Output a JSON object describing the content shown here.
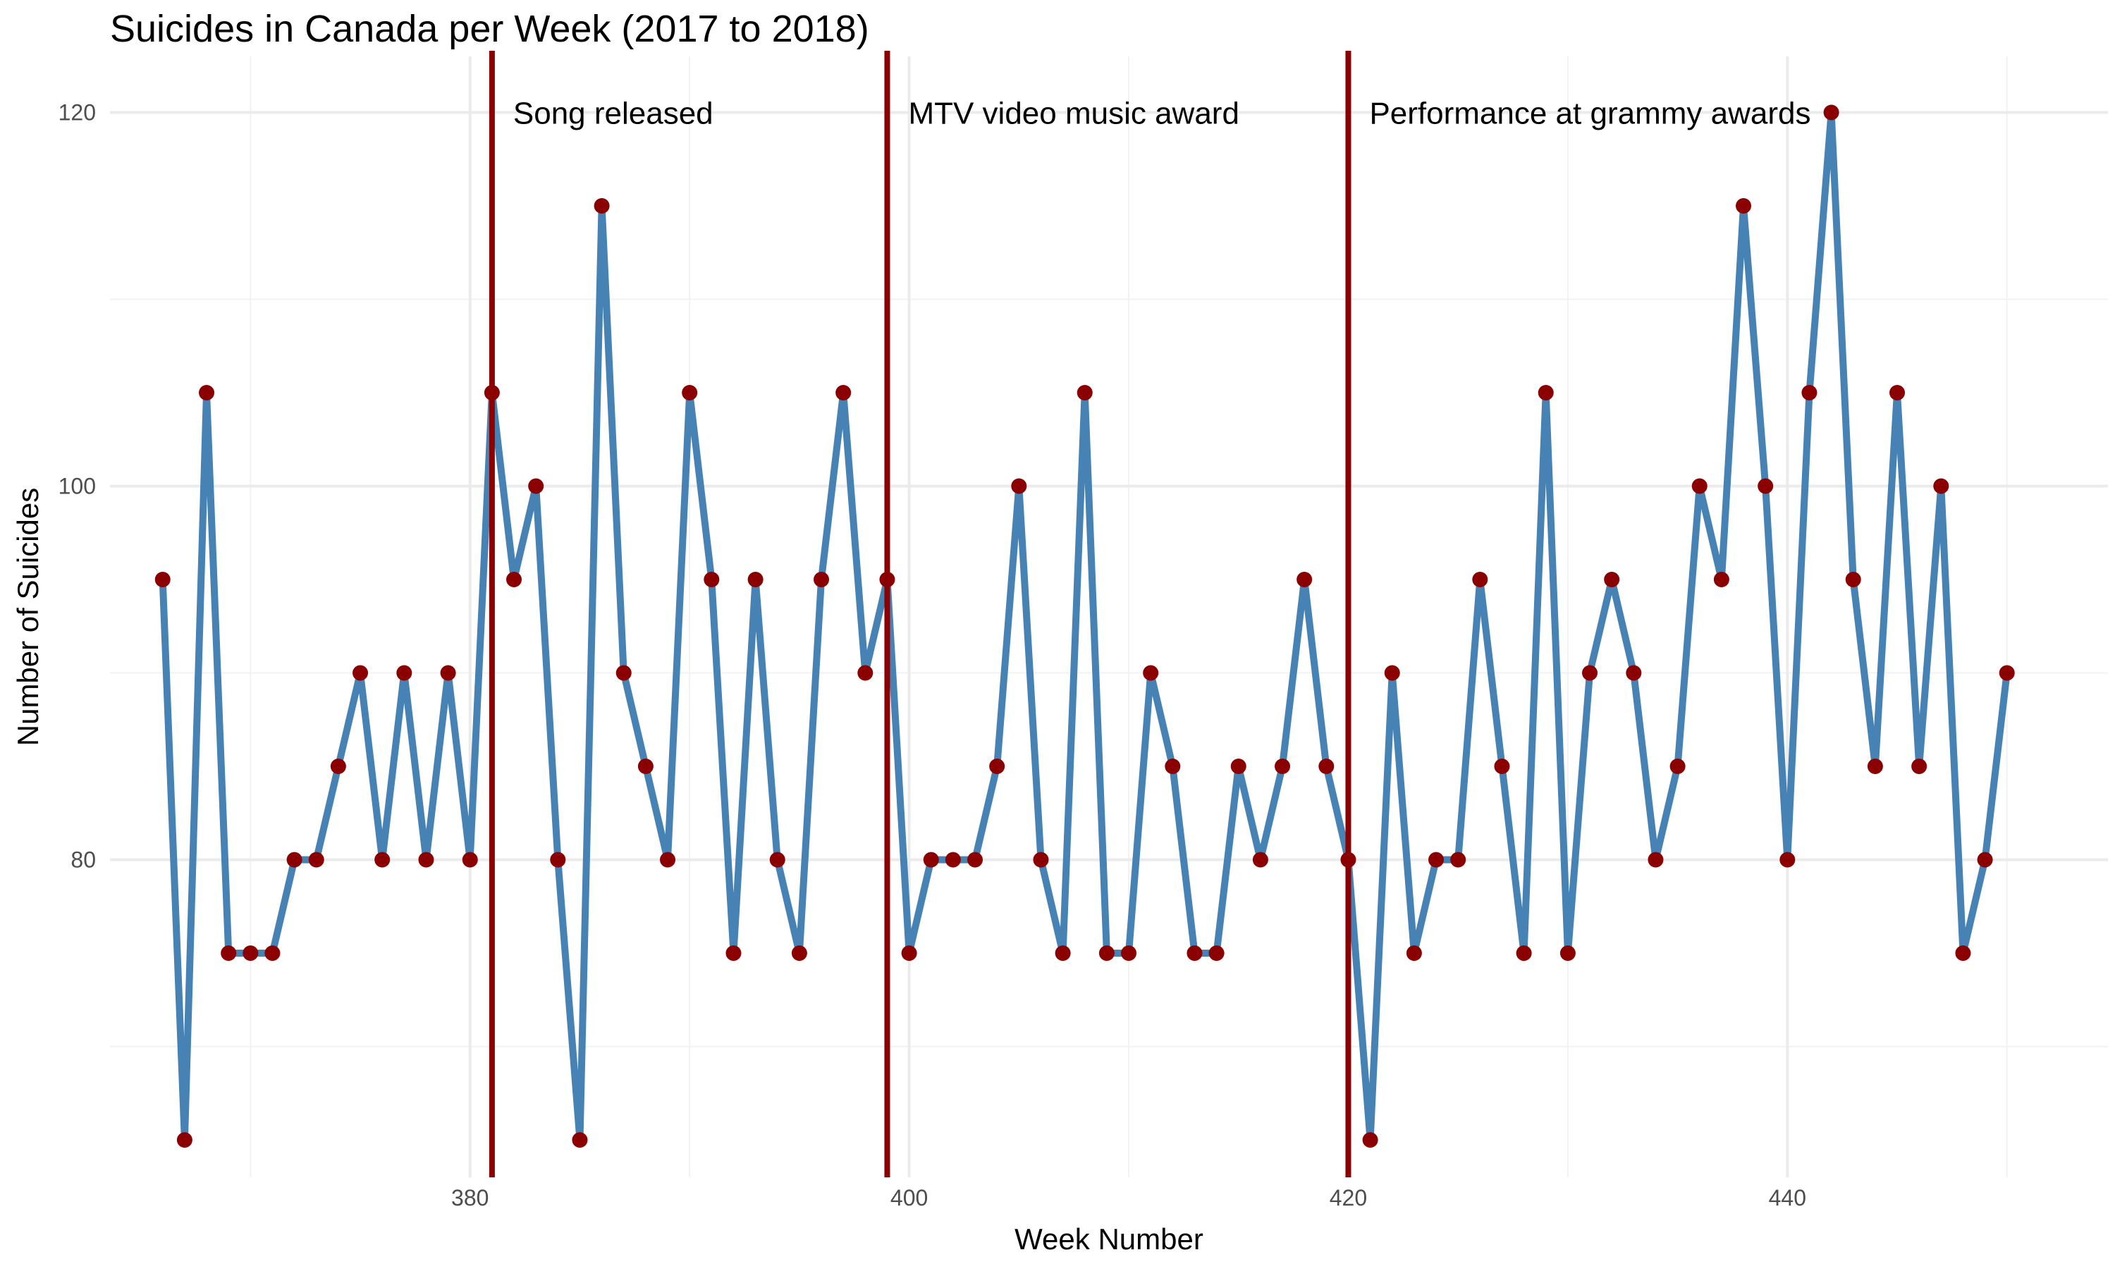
{
  "chart_data": {
    "type": "line",
    "title": "Suicides in Canada per Week (2017 to 2018)",
    "xlabel": "Week Number",
    "ylabel": "Number of Suicides",
    "xlim": [
      363.6,
      454.6
    ],
    "ylim": [
      63,
      123
    ],
    "x_ticks": [
      380,
      400,
      420,
      440
    ],
    "y_ticks": [
      80,
      100,
      120
    ],
    "x_minor_grid": [
      370,
      390,
      410,
      430,
      450
    ],
    "y_minor_grid": [
      70,
      90,
      110
    ],
    "grid": true,
    "line_color": "#4682B4",
    "point_color": "#8B0000",
    "series": [
      {
        "x": [
          366,
          367,
          368,
          369,
          370,
          371,
          372,
          373,
          374,
          375,
          376,
          377,
          378,
          379,
          380,
          381,
          382,
          383,
          384,
          385,
          386,
          387,
          388,
          389,
          390,
          391,
          392,
          393,
          394,
          395,
          396,
          397,
          398,
          399,
          400,
          401,
          402,
          403,
          404,
          405,
          406,
          407,
          408,
          409,
          410,
          411,
          412,
          413,
          414,
          415,
          416,
          417,
          418,
          419,
          420,
          421,
          422,
          423,
          424,
          425,
          426,
          427,
          428,
          429,
          430,
          431,
          432,
          433,
          434,
          435,
          436,
          437,
          438,
          439,
          440,
          441,
          442,
          443,
          444,
          445,
          446,
          447,
          448,
          449,
          450
        ],
        "values": [
          95,
          65,
          105,
          75,
          75,
          75,
          80,
          80,
          85,
          90,
          80,
          90,
          80,
          90,
          80,
          105,
          95,
          100,
          80,
          65,
          115,
          90,
          85,
          80,
          105,
          95,
          75,
          95,
          80,
          75,
          95,
          105,
          90,
          95,
          75,
          80,
          80,
          80,
          85,
          100,
          80,
          75,
          105,
          75,
          75,
          90,
          85,
          75,
          75,
          85,
          80,
          85,
          95,
          85,
          80,
          65,
          90,
          75,
          80,
          80,
          95,
          85,
          75,
          105,
          75,
          90,
          95,
          90,
          80,
          85,
          100,
          95,
          115,
          100,
          80,
          105,
          120,
          95,
          85,
          105,
          85,
          100,
          75,
          80,
          90
        ]
      }
    ],
    "events": [
      {
        "x": 381,
        "label": "Song released"
      },
      {
        "x": 399,
        "label": "MTV video music award"
      },
      {
        "x": 420,
        "label": "Performance at grammy awards"
      }
    ],
    "event_color": "#8B0000"
  }
}
